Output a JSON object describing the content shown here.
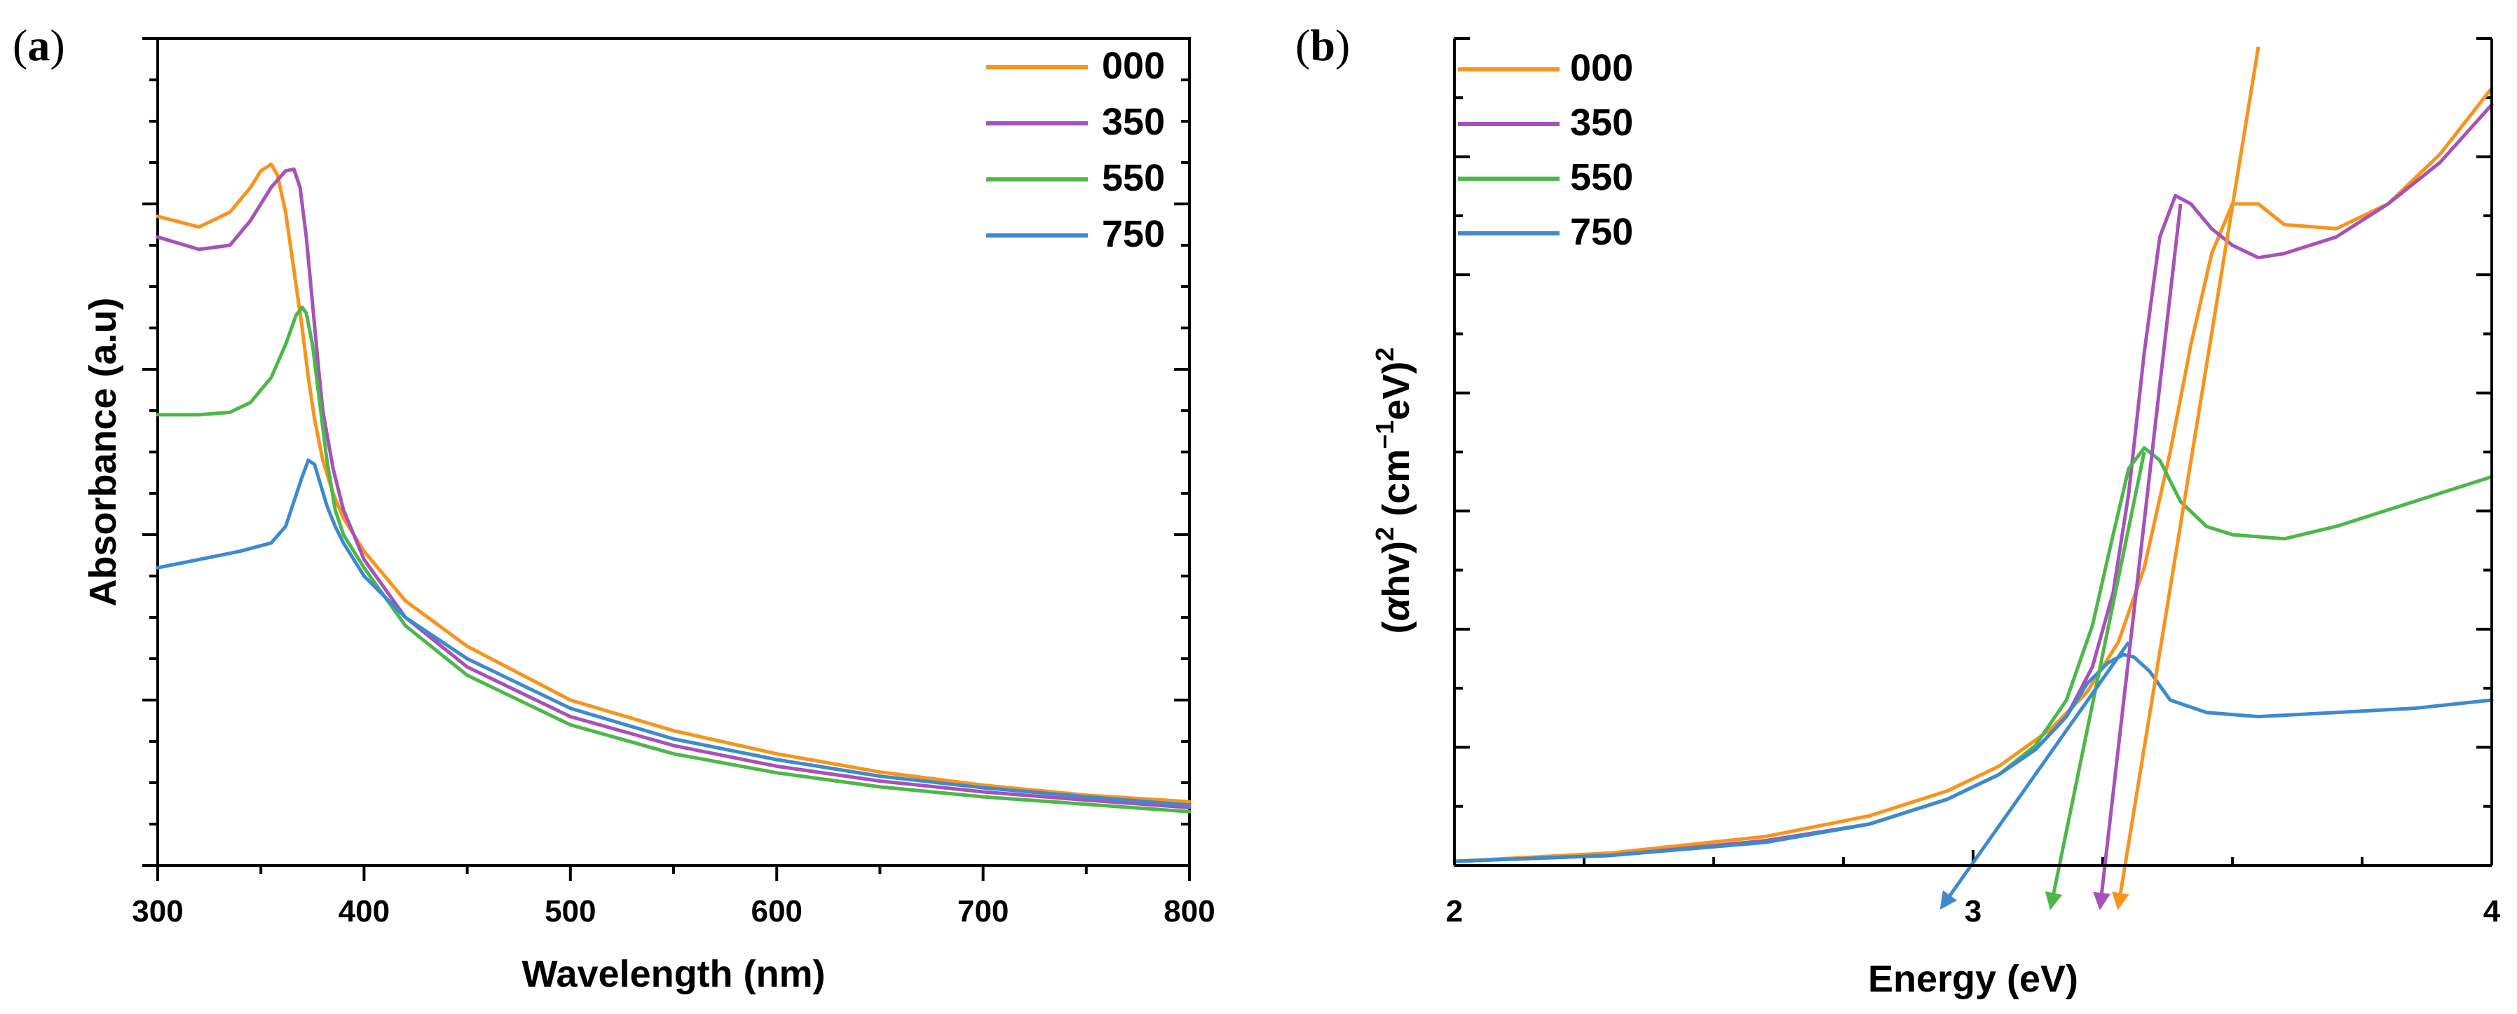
{
  "colors": {
    "s000": "#F7941D",
    "s350": "#A652B8",
    "s550": "#4CB849",
    "s750": "#3C8AD0"
  },
  "chart_data": [
    {
      "panel_label": "(a)",
      "panel_letter": "a",
      "type": "line",
      "title": "",
      "xlabel": "Wavelength (nm)",
      "ylabel": "Absorbance (a.u)",
      "xlim": [
        300,
        800
      ],
      "ylim": [
        0,
        1
      ],
      "xticks": [
        "300",
        "400",
        "500",
        "600",
        "700",
        "800"
      ],
      "legend_position": "top-right",
      "series": [
        {
          "name": "000",
          "color": "#F7941D",
          "x": [
            300,
            320,
            335,
            345,
            350,
            355,
            358,
            362,
            366,
            370,
            373,
            376,
            380,
            385,
            390,
            400,
            420,
            450,
            500,
            550,
            600,
            650,
            700,
            750,
            800
          ],
          "y": [
            0.785,
            0.772,
            0.79,
            0.82,
            0.84,
            0.848,
            0.835,
            0.79,
            0.72,
            0.65,
            0.59,
            0.54,
            0.49,
            0.45,
            0.42,
            0.38,
            0.32,
            0.265,
            0.2,
            0.163,
            0.135,
            0.113,
            0.097,
            0.085,
            0.077
          ]
        },
        {
          "name": "350",
          "color": "#A652B8",
          "x": [
            300,
            320,
            335,
            345,
            355,
            362,
            366,
            369,
            372,
            375,
            378,
            380,
            385,
            390,
            400,
            420,
            450,
            500,
            550,
            600,
            650,
            700,
            750,
            800
          ],
          "y": [
            0.76,
            0.745,
            0.75,
            0.78,
            0.82,
            0.84,
            0.842,
            0.82,
            0.76,
            0.68,
            0.6,
            0.55,
            0.48,
            0.43,
            0.37,
            0.3,
            0.24,
            0.18,
            0.145,
            0.12,
            0.102,
            0.089,
            0.079,
            0.07
          ]
        },
        {
          "name": "550",
          "color": "#4CB849",
          "x": [
            300,
            320,
            335,
            345,
            355,
            362,
            367,
            370,
            372,
            375,
            378,
            382,
            386,
            390,
            400,
            420,
            450,
            500,
            550,
            600,
            650,
            700,
            750,
            800
          ],
          "y": [
            0.545,
            0.545,
            0.548,
            0.56,
            0.59,
            0.63,
            0.665,
            0.675,
            0.668,
            0.63,
            0.57,
            0.49,
            0.43,
            0.4,
            0.36,
            0.29,
            0.23,
            0.17,
            0.135,
            0.112,
            0.095,
            0.083,
            0.074,
            0.065
          ]
        },
        {
          "name": "750",
          "color": "#3C8AD0",
          "x": [
            300,
            320,
            340,
            355,
            362,
            366,
            370,
            373,
            376,
            379,
            382,
            386,
            390,
            400,
            420,
            450,
            500,
            550,
            600,
            650,
            700,
            750,
            800
          ],
          "y": [
            0.36,
            0.37,
            0.38,
            0.39,
            0.41,
            0.44,
            0.47,
            0.49,
            0.485,
            0.46,
            0.435,
            0.41,
            0.39,
            0.35,
            0.3,
            0.25,
            0.19,
            0.153,
            0.128,
            0.108,
            0.094,
            0.083,
            0.073
          ]
        }
      ]
    },
    {
      "panel_label": "(b)",
      "panel_letter": "b",
      "type": "line",
      "title": "",
      "xlabel": "Energy (eV)",
      "ylabel_parts": [
        "(",
        "α",
        "hv)",
        "2",
        " (cm",
        "−1",
        "eV)",
        "2"
      ],
      "xlim": [
        2,
        4
      ],
      "ylim": [
        0,
        1
      ],
      "xticks": [
        "2",
        "3",
        "4"
      ],
      "legend_position": "top-left",
      "series": [
        {
          "name": "000",
          "color": "#F7941D",
          "x": [
            2,
            2.3,
            2.6,
            2.8,
            2.95,
            3.05,
            3.15,
            3.22,
            3.28,
            3.33,
            3.38,
            3.42,
            3.46,
            3.5,
            3.55,
            3.6,
            3.7,
            3.8,
            3.9,
            4
          ],
          "y": [
            0.005,
            0.015,
            0.035,
            0.06,
            0.09,
            0.12,
            0.165,
            0.21,
            0.27,
            0.36,
            0.5,
            0.63,
            0.74,
            0.8,
            0.8,
            0.775,
            0.77,
            0.8,
            0.86,
            0.94
          ]
        },
        {
          "name": "350",
          "color": "#A652B8",
          "x": [
            2,
            2.3,
            2.6,
            2.8,
            2.95,
            3.05,
            3.12,
            3.18,
            3.23,
            3.27,
            3.3,
            3.33,
            3.36,
            3.39,
            3.42,
            3.46,
            3.5,
            3.55,
            3.6,
            3.7,
            3.8,
            3.9,
            4
          ],
          "y": [
            0.005,
            0.012,
            0.03,
            0.05,
            0.08,
            0.11,
            0.14,
            0.18,
            0.24,
            0.33,
            0.45,
            0.62,
            0.76,
            0.81,
            0.8,
            0.77,
            0.75,
            0.735,
            0.74,
            0.76,
            0.8,
            0.85,
            0.92
          ]
        },
        {
          "name": "550",
          "color": "#4CB849",
          "x": [
            2,
            2.3,
            2.6,
            2.8,
            2.95,
            3.05,
            3.12,
            3.18,
            3.23,
            3.27,
            3.3,
            3.33,
            3.36,
            3.4,
            3.45,
            3.5,
            3.6,
            3.7,
            3.8,
            3.9,
            4
          ],
          "y": [
            0.005,
            0.012,
            0.028,
            0.05,
            0.08,
            0.11,
            0.145,
            0.2,
            0.29,
            0.4,
            0.48,
            0.505,
            0.49,
            0.44,
            0.41,
            0.4,
            0.395,
            0.41,
            0.43,
            0.45,
            0.47
          ]
        },
        {
          "name": "750",
          "color": "#3C8AD0",
          "x": [
            2,
            2.3,
            2.6,
            2.8,
            2.95,
            3.05,
            3.12,
            3.18,
            3.22,
            3.26,
            3.29,
            3.31,
            3.34,
            3.38,
            3.45,
            3.55,
            3.7,
            3.85,
            4
          ],
          "y": [
            0.005,
            0.012,
            0.028,
            0.05,
            0.08,
            0.11,
            0.14,
            0.18,
            0.22,
            0.245,
            0.255,
            0.252,
            0.235,
            0.2,
            0.185,
            0.18,
            0.185,
            0.19,
            0.2
          ]
        }
      ],
      "tangent_lines": [
        {
          "series": "000",
          "from": [
            3.55,
            0.99
          ],
          "to": [
            3.28,
            -0.05
          ]
        },
        {
          "series": "350",
          "from": [
            3.4,
            0.8
          ],
          "to": [
            3.245,
            -0.05
          ]
        },
        {
          "series": "550",
          "from": [
            3.33,
            0.5
          ],
          "to": [
            3.15,
            -0.05
          ]
        },
        {
          "series": "750",
          "from": [
            3.3,
            0.27
          ],
          "to": [
            2.94,
            -0.05
          ]
        }
      ]
    }
  ]
}
